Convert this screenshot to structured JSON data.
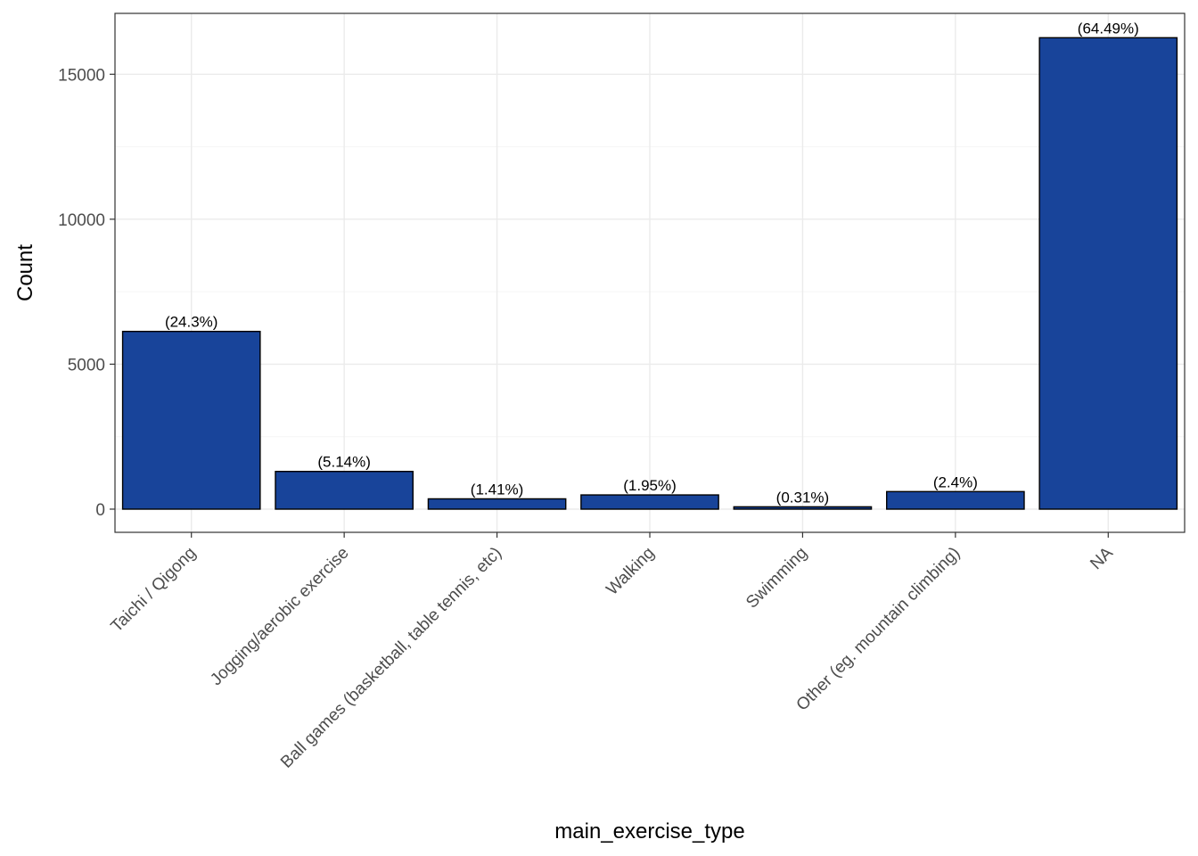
{
  "chart_data": {
    "type": "bar",
    "title": "",
    "xlabel": "main_exercise_type",
    "ylabel": "Count",
    "categories": [
      "Taichi / Qigong",
      "Jogging/aerobic exercise",
      "Ball games (basketball, table tennis, etc)",
      "Walking",
      "Swimming",
      "Other (eg. mountain climbing)",
      "NA"
    ],
    "values": [
      6130,
      1300,
      355,
      490,
      80,
      605,
      16260
    ],
    "labels": [
      "(24.3%)",
      "(5.14%)",
      "(1.41%)",
      "(1.95%)",
      "(0.31%)",
      "(2.4%)",
      "(64.49%)"
    ],
    "ylim": [
      -800,
      17100
    ],
    "yticks": [
      0,
      5000,
      10000,
      15000
    ],
    "ytick_labels": [
      "0",
      "5000",
      "10000",
      "15000"
    ],
    "grid": true,
    "legend": "none",
    "colors": {
      "bar_fill": "#18449A",
      "bar_stroke": "#000000",
      "grid_major": "#ebebeb",
      "grid_minor": "#f5f5f5",
      "panel_border": "#333333",
      "tick_text": "#4d4d4d"
    }
  }
}
